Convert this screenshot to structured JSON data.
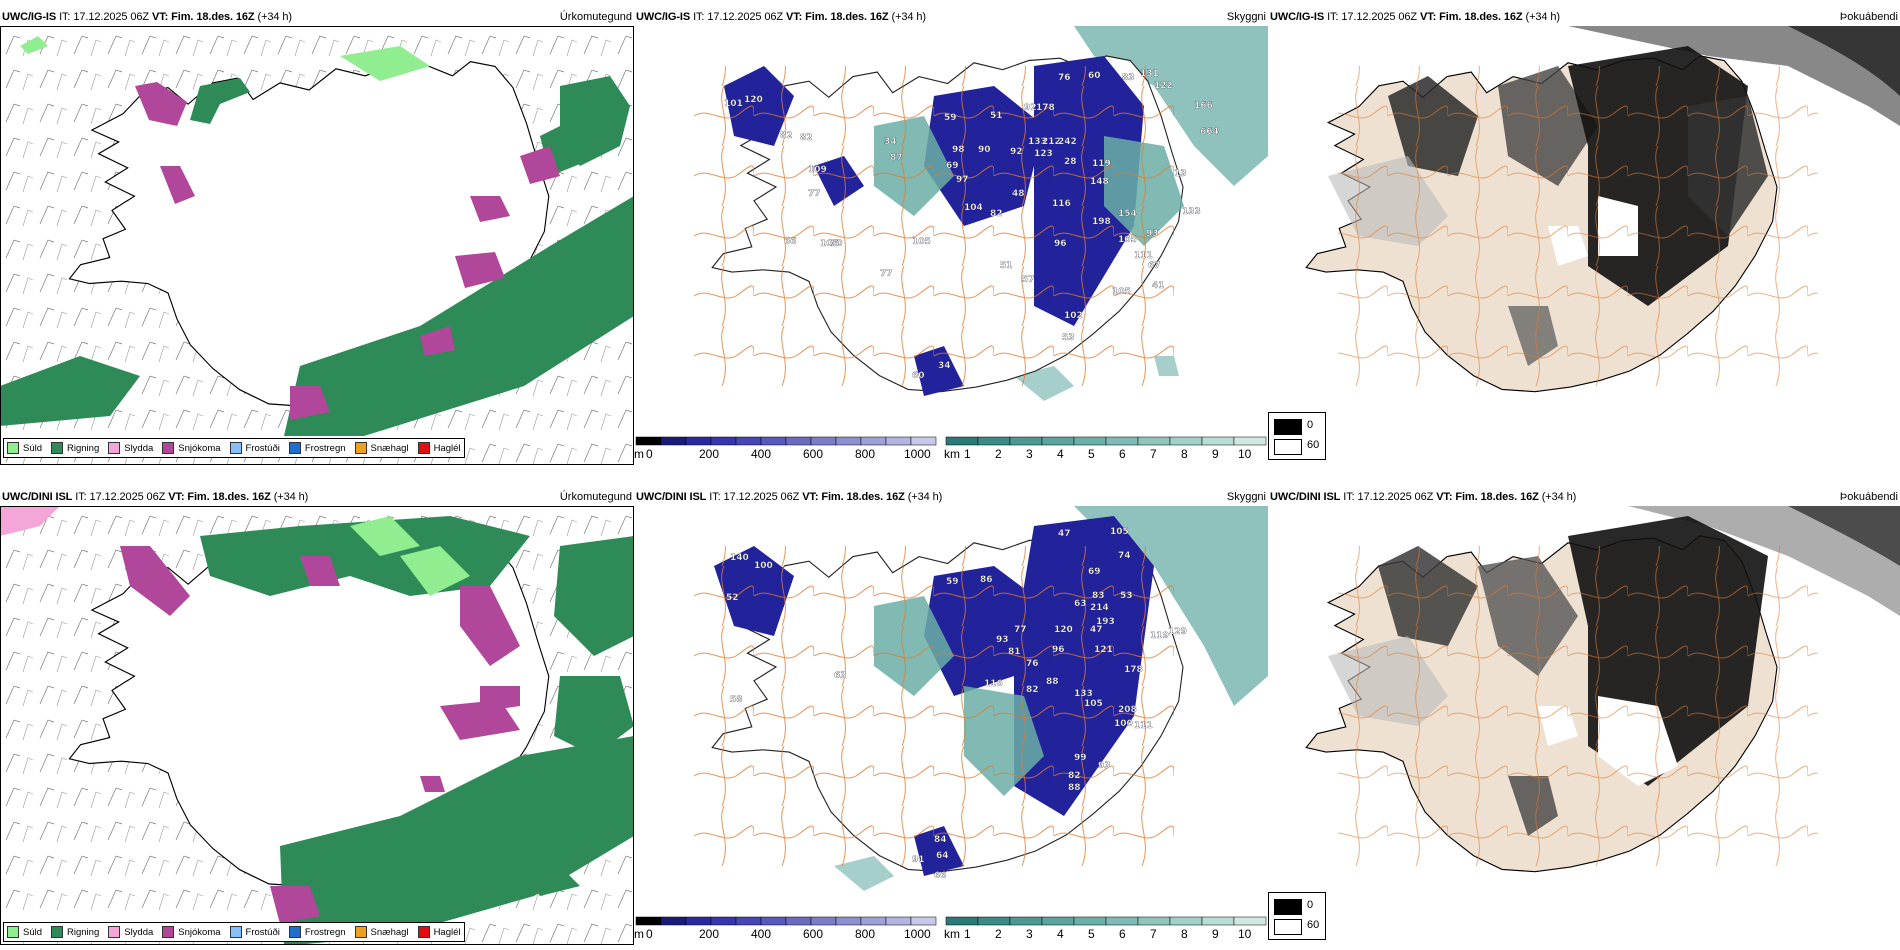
{
  "rows": [
    {
      "model": "UWC/IG-IS",
      "it_label": "IT:",
      "it": "17.12.2025 06Z",
      "vt_label": "VT:",
      "vt": "Fim. 18.des. 16Z",
      "lead": "(+34 h)",
      "panels": [
        "Úrkomutegund",
        "Skyggni",
        "Þokuábendi"
      ],
      "vis_numbers": [
        "76",
        "60",
        "83",
        "131",
        "122",
        "166",
        "664",
        "101",
        "120",
        "59",
        "51",
        "82",
        "92",
        "178",
        "34",
        "87",
        "98",
        "69",
        "90",
        "92",
        "133",
        "212",
        "242",
        "82",
        "123",
        "28",
        "119",
        "109",
        "97",
        "104",
        "48",
        "148",
        "77",
        "82",
        "116",
        "154",
        "133",
        "70",
        "51",
        "198",
        "13",
        "93",
        "105",
        "66",
        "96",
        "105",
        "67",
        "106",
        "111",
        "77",
        "105",
        "57",
        "41",
        "102",
        "53",
        "34",
        "60"
      ]
    },
    {
      "model": "UWC/DINI ISL",
      "it_label": "IT:",
      "it": "17.12.2025 06Z",
      "vt_label": "VT:",
      "vt": "Fim. 18.des. 16Z",
      "lead": "(+34 h)",
      "panels": [
        "Úrkomutegund",
        "Skyggni",
        "Þokuábendi"
      ],
      "vis_numbers": [
        "47",
        "105",
        "74",
        "140",
        "100",
        "69",
        "59",
        "86",
        "52",
        "83",
        "63",
        "214",
        "53",
        "193",
        "77",
        "93",
        "81",
        "120",
        "47",
        "96",
        "121",
        "119",
        "129",
        "116",
        "82",
        "88",
        "76",
        "178",
        "133",
        "105",
        "208",
        "100",
        "111",
        "99",
        "93",
        "82",
        "88",
        "63",
        "58",
        "84",
        "64",
        "91",
        "66"
      ]
    }
  ],
  "precip_legend": [
    {
      "label": "Súld",
      "color": "#90ee90"
    },
    {
      "label": "Rigning",
      "color": "#2e8b57"
    },
    {
      "label": "Slydda",
      "color": "#f4a6d8"
    },
    {
      "label": "Snjókoma",
      "color": "#b0479a"
    },
    {
      "label": "Frostúði",
      "color": "#87bfff"
    },
    {
      "label": "Frostregn",
      "color": "#1e6fcf"
    },
    {
      "label": "Snæhagl",
      "color": "#f0a020"
    },
    {
      "label": "Haglél",
      "color": "#e01010"
    }
  ],
  "vis_colorbar_m": {
    "unit": "m",
    "ticks": [
      "0",
      "200",
      "400",
      "600",
      "800",
      "1000"
    ],
    "colors": [
      "#000000",
      "#1a1a7a",
      "#2a2aa0",
      "#3636b0",
      "#4646b8",
      "#5858be",
      "#6a6ac4",
      "#7c7cca",
      "#8e8ed0",
      "#a0a0d8",
      "#b4b4e0",
      "#c8c8e8"
    ]
  },
  "vis_colorbar_km": {
    "unit": "km",
    "ticks": [
      "1",
      "2",
      "3",
      "4",
      "5",
      "6",
      "7",
      "8",
      "9",
      "10"
    ],
    "colors": [
      "#2a7a7a",
      "#3a8a86",
      "#4a9a92",
      "#5aa69c",
      "#6ab2a8",
      "#7cbcb2",
      "#8ec6bc",
      "#a2d0c8",
      "#b8dcd6",
      "#d2e8e4"
    ]
  },
  "fog_legend": [
    {
      "label": "0",
      "color": "#000000"
    },
    {
      "label": "60",
      "color": "#ffffff"
    }
  ],
  "colors": {
    "rain": "#2e8b57",
    "drizzle": "#90ee90",
    "snow": "#b0479a",
    "sleet": "#f4a6d8",
    "vis_dark": "#22229a",
    "vis_teal": "#6aaea6",
    "roads": "#e07a30",
    "land_tan": "#efe1d2",
    "fog_dark": "#1a1a1a"
  }
}
